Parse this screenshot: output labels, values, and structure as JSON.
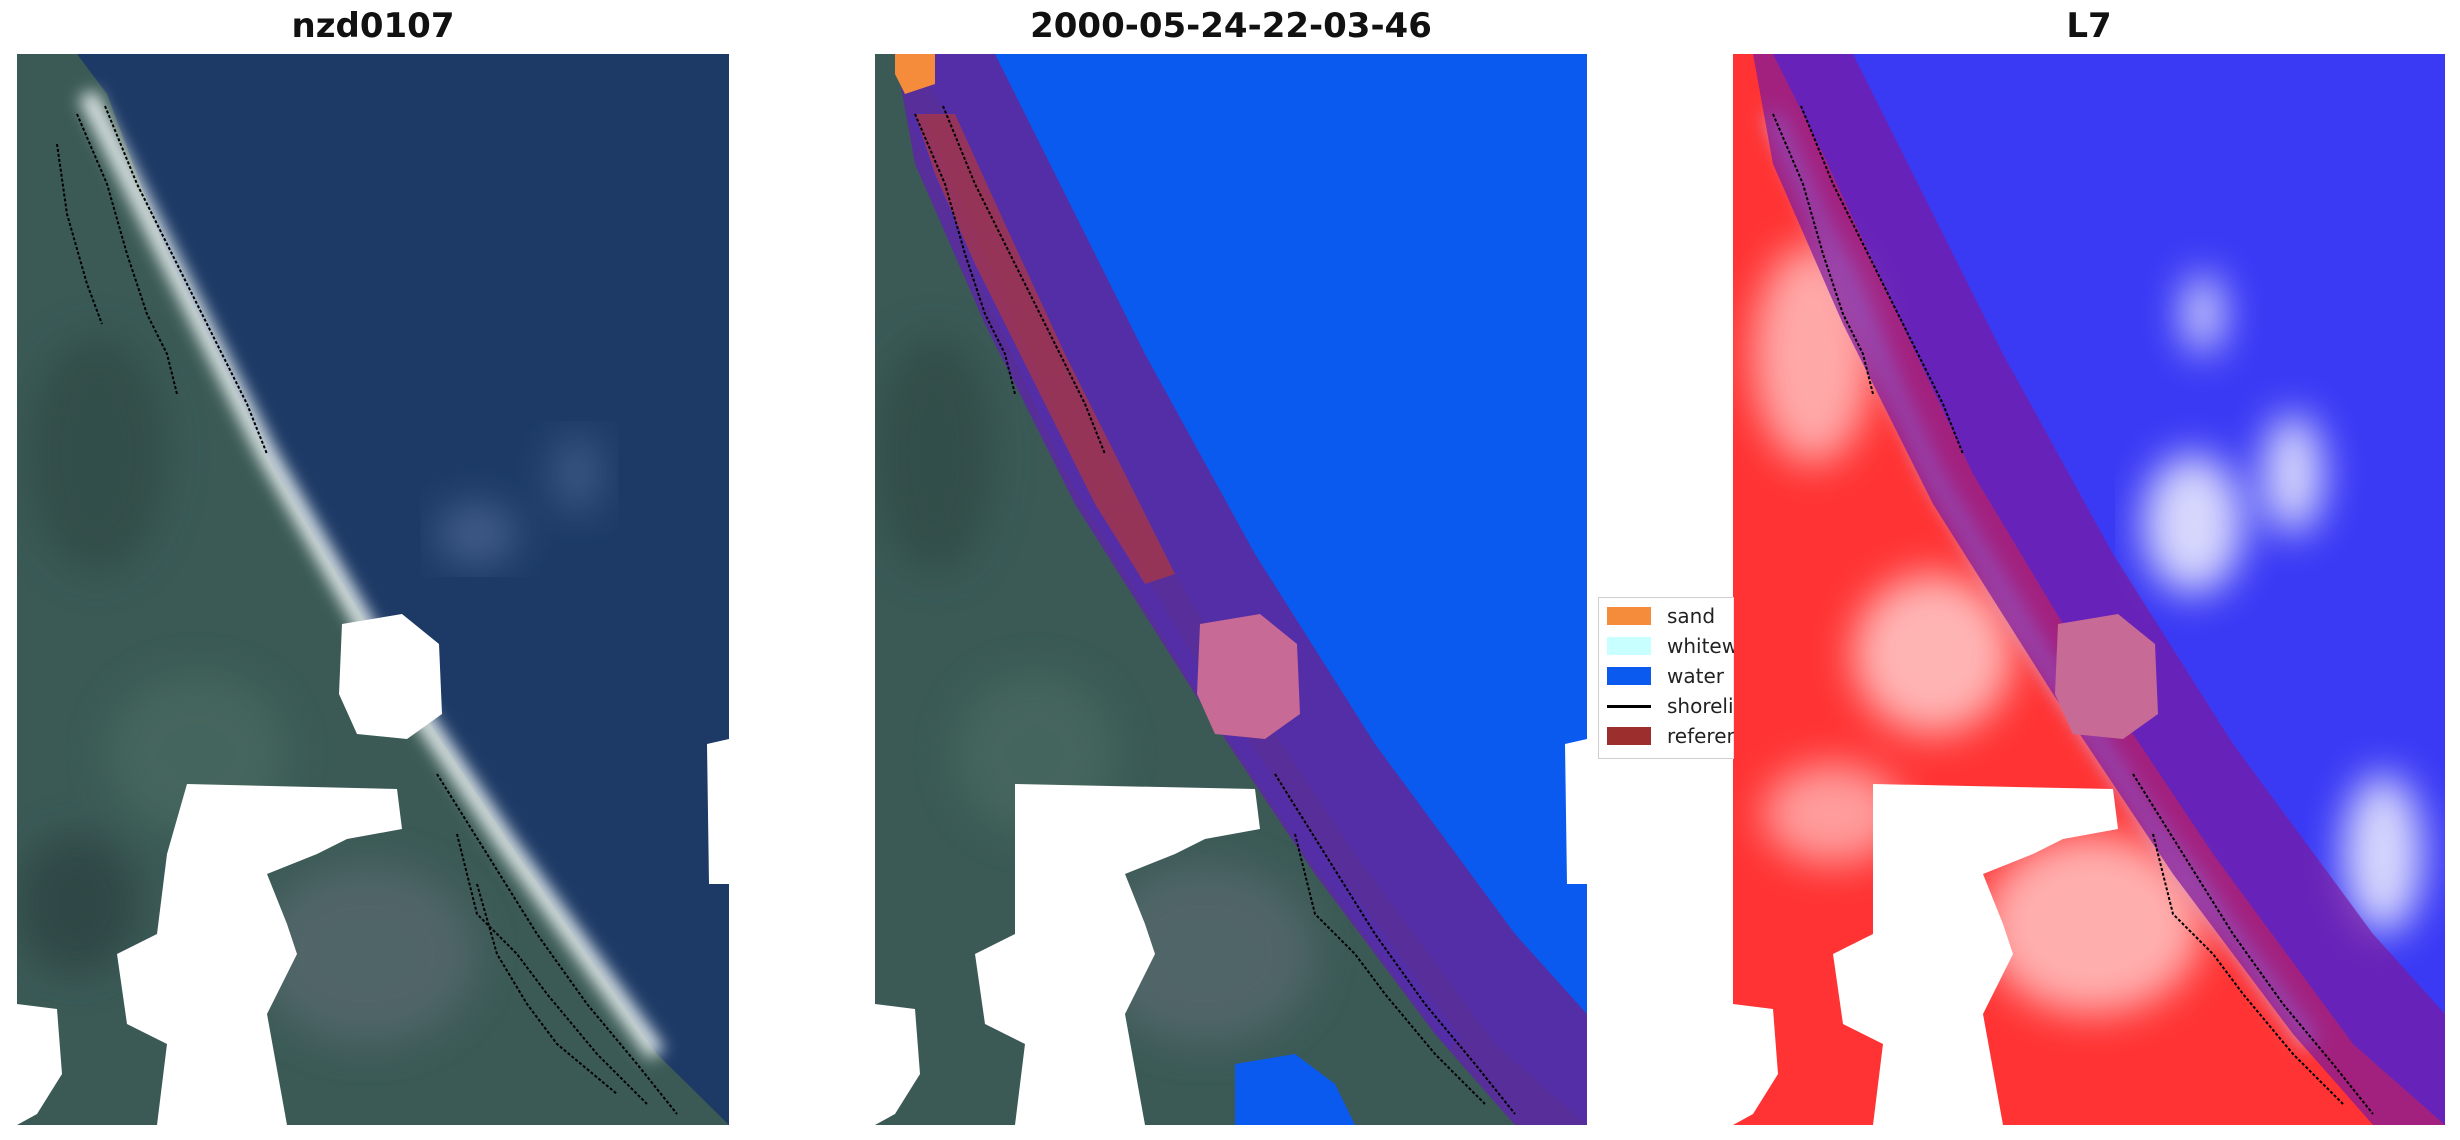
{
  "panels": [
    {
      "title": "nzd0107",
      "type": "rgb"
    },
    {
      "title": "2000-05-24-22-03-46",
      "type": "classification"
    },
    {
      "title": "L7",
      "type": "index"
    }
  ],
  "legend": {
    "placement": "right of middle panel",
    "items": [
      {
        "label": "sand",
        "color": "#f58c3c",
        "kind": "patch"
      },
      {
        "label": "whitew",
        "color": "#c8ffff",
        "kind": "patch"
      },
      {
        "label": "water",
        "color": "#0a5af0",
        "kind": "patch"
      },
      {
        "label": "shoreli",
        "color": "#000000",
        "kind": "line"
      },
      {
        "label": "referen",
        "color": "#9c2e2e",
        "kind": "patch"
      }
    ]
  },
  "colors": {
    "ocean_rgb": "#1d3a66",
    "land_rgb": "#3a5a55",
    "water_class": "#0a5af0",
    "buffer": "#5a2aa0",
    "index_land": "#ff2a2a",
    "index_water": "#2a2aff",
    "cloud": "#ffffff"
  }
}
